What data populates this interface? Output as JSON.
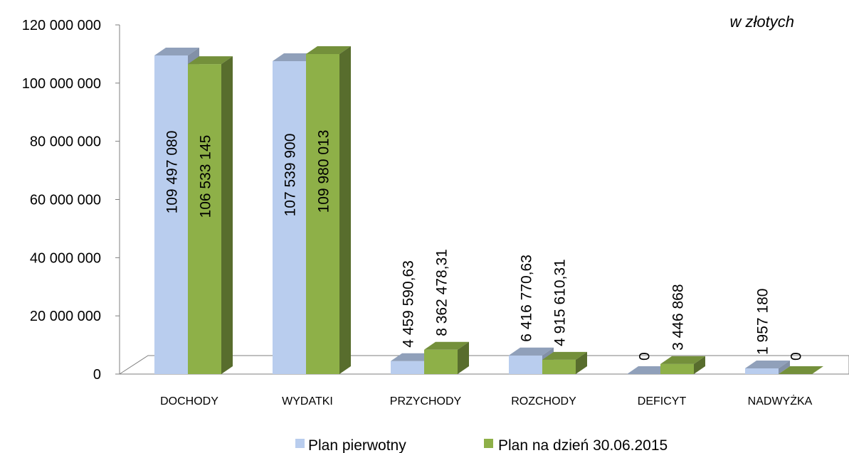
{
  "unit_note": "w złotych",
  "chart_data": {
    "type": "bar",
    "categories": [
      "DOCHODY",
      "WYDATKI",
      "PRZYCHODY",
      "ROZCHODY",
      "DEFICYT",
      "NADWYŻKA"
    ],
    "series": [
      {
        "name": "Plan pierwotny",
        "color": "#b9cdee",
        "values": [
          109497080,
          107539900,
          4459590.63,
          6416770.63,
          0,
          1957180
        ],
        "labels": [
          "109 497 080",
          "107 539 900",
          "4 459 590,63",
          "6 416 770,63",
          "0",
          "1 957 180"
        ]
      },
      {
        "name": "Plan na dzień 30.06.2015",
        "color": "#8eb048",
        "values": [
          106533145,
          109980013,
          8362478.31,
          4915610.31,
          3446868,
          0
        ],
        "labels": [
          "106 533 145",
          "109 980 013",
          "8 362 478,31",
          "4 915 610,31",
          "3 446 868",
          "0"
        ]
      }
    ],
    "yticks": [
      "0",
      "20 000 000",
      "40 000 000",
      "60 000 000",
      "80 000 000",
      "100 000 000",
      "120 000 000"
    ],
    "ylim": [
      0,
      120000000
    ],
    "legend": "bottom",
    "grid": false,
    "style": "3d-column"
  }
}
